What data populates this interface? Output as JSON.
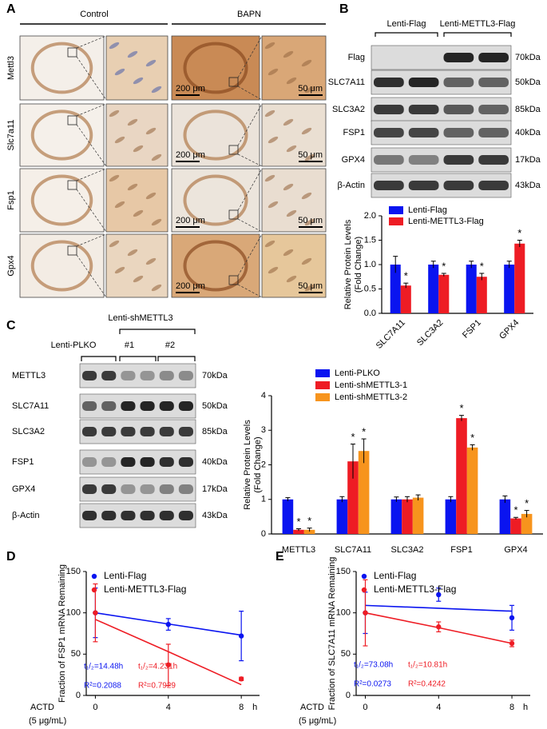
{
  "panel_labels": [
    "A",
    "B",
    "C",
    "D",
    "E"
  ],
  "panel_a": {
    "groups": [
      "Control",
      "BAPN"
    ],
    "rows": [
      "Mettl3",
      "Slc7a11",
      "Fsp1",
      "Gpx4"
    ],
    "scale_bar_low": "200 μm",
    "scale_bar_high": "50 μm"
  },
  "panel_b_blot": {
    "groups": [
      "Lenti-Flag",
      "Lenti-METTL3-Flag"
    ],
    "proteins": [
      "Flag",
      "SLC7A11",
      "SLC3A2",
      "FSP1",
      "GPX4",
      "β-Actin"
    ],
    "sizes": [
      "70kDa",
      "50kDa",
      "85kDa",
      "40kDa",
      "17kDa",
      "43kDa"
    ]
  },
  "panel_c_blot": {
    "groups": [
      "Lenti-PLKO",
      "Lenti-shMETTL3"
    ],
    "subgroups": [
      "#1",
      "#2"
    ],
    "proteins": [
      "METTL3",
      "SLC7A11",
      "SLC3A2",
      "FSP1",
      "GPX4",
      "β-Actin"
    ],
    "sizes": [
      "70kDa",
      "50kDa",
      "85kDa",
      "40kDa",
      "17kDa",
      "43kDa"
    ]
  },
  "chart_data": [
    {
      "type": "bar",
      "ylabel": [
        "Relative Protein Levels",
        "(Fold Change)"
      ],
      "categories": [
        "SLC7A11",
        "SLC3A2",
        "FSP1",
        "GPX4"
      ],
      "series": [
        {
          "name": "Lenti-Flag",
          "color": "#0a14f0",
          "values": [
            1.0,
            1.0,
            1.0,
            1.0
          ],
          "errors": [
            0.17,
            0.07,
            0.07,
            0.07
          ],
          "significance": [
            null,
            null,
            null,
            null
          ]
        },
        {
          "name": "Lenti-METTL3-Flag",
          "color": "#ee1c24",
          "values": [
            0.57,
            0.79,
            0.75,
            1.43
          ],
          "errors": [
            0.05,
            0.03,
            0.07,
            0.07
          ],
          "significance": [
            "*",
            "*",
            "*",
            "*"
          ]
        }
      ],
      "ylim": [
        0,
        2
      ],
      "yticks": [
        {
          "value": 0,
          "label": "0.0"
        },
        0.5,
        {
          "value": 1,
          "label": "1.0"
        },
        1.5,
        {
          "value": 2,
          "label": "2.0"
        }
      ]
    },
    {
      "type": "bar",
      "ylabel": [
        "Relative Protein Levels",
        "(Fold Change)"
      ],
      "categories": [
        "METTL3",
        "SLC7A11",
        "SLC3A2",
        "FSP1",
        "GPX4"
      ],
      "series": [
        {
          "name": "Lenti-PLKO",
          "color": "#0a14f0",
          "values": [
            1.0,
            1.0,
            1.0,
            1.0,
            1.0
          ],
          "errors": [
            0.05,
            0.08,
            0.07,
            0.08,
            0.1
          ],
          "significance": [
            null,
            null,
            null,
            null,
            null
          ]
        },
        {
          "name": "Lenti-shMETTL3-1",
          "color": "#ee1c24",
          "values": [
            0.12,
            2.1,
            1.0,
            3.35,
            0.45
          ],
          "errors": [
            0.03,
            0.5,
            0.08,
            0.08,
            0.03
          ],
          "significance": [
            "*",
            "*",
            null,
            "*",
            "*"
          ]
        },
        {
          "name": "Lenti-shMETTL3-2",
          "color": "#f7941d",
          "values": [
            0.12,
            2.4,
            1.05,
            2.5,
            0.58
          ],
          "errors": [
            0.05,
            0.35,
            0.08,
            0.08,
            0.1
          ],
          "significance": [
            "*",
            "*",
            null,
            "*",
            "*"
          ]
        }
      ],
      "ylim": [
        0,
        4
      ],
      "yticks": [
        0,
        1,
        2,
        3,
        4
      ]
    },
    {
      "type": "line",
      "ylabel": "Fraction of FSP1 mRNA Remaining",
      "x_axis_label": "ACTD",
      "x_axis_sublabel": "(5 μg/mL)",
      "x_unit": "h",
      "x": [
        0,
        4,
        8
      ],
      "series": [
        {
          "name": "Lenti-Flag",
          "color": "#0a14f0",
          "values": [
            100,
            86,
            72
          ],
          "errors": [
            30,
            7,
            30
          ],
          "fit": [
            100,
            86.5,
            73
          ],
          "half_life": "t₁/₂=14.48h",
          "r_squared": "R²=0.2088"
        },
        {
          "name": "Lenti-METTL3-Flag",
          "color": "#ee1c24",
          "values": [
            100,
            37,
            20
          ],
          "errors": [
            35,
            25,
            2
          ],
          "fit": [
            92,
            53,
            13
          ],
          "half_life": "t₁/₂=4.231h",
          "r_squared": "R²=0.7929"
        }
      ],
      "xlim": [
        -0.5,
        9
      ],
      "xticks": [
        0,
        4,
        8
      ],
      "ylim": [
        0,
        150
      ],
      "yticks": [
        0,
        50,
        100,
        150
      ]
    },
    {
      "type": "line",
      "ylabel": "Fraction of SLC7A11 mRNA Remaining",
      "x_axis_label": "ACTD",
      "x_axis_sublabel": "(5 μg/mL)",
      "x_unit": "h",
      "x": [
        0,
        4,
        8
      ],
      "series": [
        {
          "name": "Lenti-Flag",
          "color": "#0a14f0",
          "values": [
            100,
            122,
            94
          ],
          "errors": [
            25,
            8,
            15
          ],
          "fit": [
            109,
            105.5,
            102
          ],
          "half_life": "t₁/₂=73.08h",
          "r_squared": "R²=0.0273"
        },
        {
          "name": "Lenti-METTL3-Flag",
          "color": "#ee1c24",
          "values": [
            100,
            83,
            63
          ],
          "errors": [
            40,
            6,
            4
          ],
          "fit": [
            100,
            82,
            63
          ],
          "half_life": "t₁/₂=10.81h",
          "r_squared": "R²=0.4242"
        }
      ],
      "xlim": [
        -0.5,
        9
      ],
      "xticks": [
        0,
        4,
        8
      ],
      "ylim": [
        0,
        150
      ],
      "yticks": [
        0,
        50,
        100,
        150
      ]
    }
  ]
}
